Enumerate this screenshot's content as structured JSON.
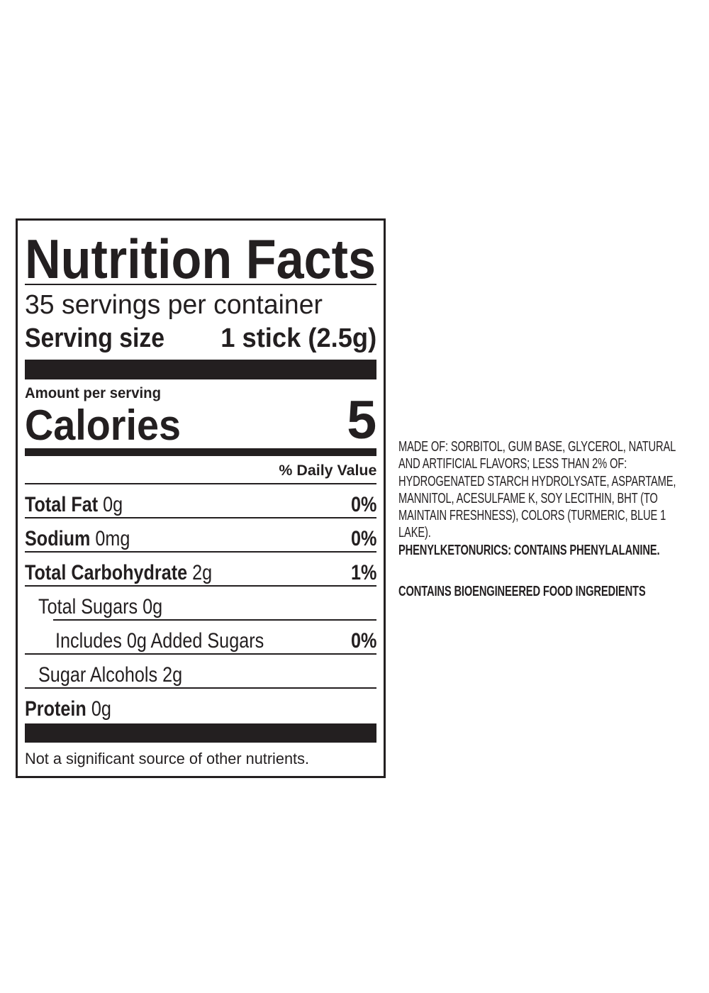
{
  "label": {
    "title": "Nutrition Facts",
    "servings": "35 servings per container",
    "serving_size_label": "Serving size",
    "serving_size_value": "1 stick (2.5g)",
    "amount_per_serving": "Amount per serving",
    "calories_label": "Calories",
    "calories_value": 5,
    "daily_value_header": "% Daily Value",
    "nutrients": [
      {
        "name": "Total Fat",
        "amount": "0g",
        "dv": "0%"
      },
      {
        "name": "Sodium",
        "amount": "0mg",
        "dv": "0%"
      },
      {
        "name": "Total Carbohydrate",
        "amount": "2g",
        "dv": "1%",
        "subrows": [
          {
            "name": "Total Sugars",
            "amount": "0g",
            "subrows": [
              {
                "name": "Includes 0g Added Sugars",
                "dv": "0%"
              }
            ]
          },
          {
            "name": "Sugar Alcohols",
            "amount": "2g"
          }
        ]
      },
      {
        "name": "Protein",
        "amount": "0g"
      }
    ],
    "footnote": "Not a significant source of other nutrients."
  },
  "ingredients": {
    "text": "MADE OF: SORBITOL, GUM BASE, GLYCEROL, NATURAL AND ARTIFICIAL FLAVORS; LESS THAN 2% OF: HYDROGENATED STARCH HYDROLYSATE, ASPARTAME, MANNITOL, ACESULFAME K, SOY LECITHIN, BHT (TO MAINTAIN FRESHNESS), COLORS (TURMERIC, BLUE 1 LAKE).",
    "warning": "PHENYLKETONURICS: CONTAINS PHENYLALANINE.",
    "bioengineered": "CONTAINS BIOENGINEERED FOOD INGREDIENTS"
  }
}
